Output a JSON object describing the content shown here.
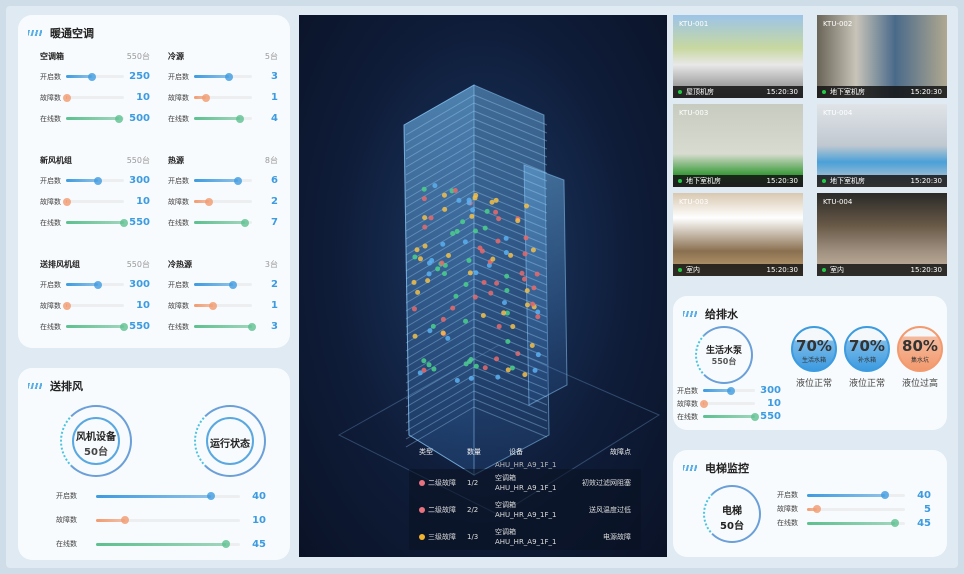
{
  "hvac": {
    "title": "暖通空调",
    "groups": [
      {
        "name": "空调箱",
        "total": 550,
        "unit": "台",
        "rows": [
          {
            "label": "开启数",
            "value": 250
          },
          {
            "label": "故障数",
            "value": 10
          },
          {
            "label": "在线数",
            "value": 500
          }
        ]
      },
      {
        "name": "冷源",
        "total": 5,
        "unit": "台",
        "rows": [
          {
            "label": "开启数",
            "value": 3
          },
          {
            "label": "故障数",
            "value": 1
          },
          {
            "label": "在线数",
            "value": 4
          }
        ]
      },
      {
        "name": "新风机组",
        "total": 550,
        "unit": "台",
        "rows": [
          {
            "label": "开启数",
            "value": 300
          },
          {
            "label": "故障数",
            "value": 10
          },
          {
            "label": "在线数",
            "value": 550
          }
        ]
      },
      {
        "name": "热源",
        "total": 8,
        "unit": "台",
        "rows": [
          {
            "label": "开启数",
            "value": 6
          },
          {
            "label": "故障数",
            "value": 2
          },
          {
            "label": "在线数",
            "value": 7
          }
        ]
      },
      {
        "name": "送排风机组",
        "total": 550,
        "unit": "台",
        "rows": [
          {
            "label": "开启数",
            "value": 300
          },
          {
            "label": "故障数",
            "value": 10
          },
          {
            "label": "在线数",
            "value": 550
          }
        ]
      },
      {
        "name": "冷热源",
        "total": 3,
        "unit": "台",
        "rows": [
          {
            "label": "开启数",
            "value": 2
          },
          {
            "label": "故障数",
            "value": 1
          },
          {
            "label": "在线数",
            "value": 3
          }
        ]
      }
    ]
  },
  "ventilation": {
    "title": "送排风",
    "device_label": "风机设备",
    "device_count": "50台",
    "status_label": "运行状态",
    "total": 50,
    "rows": [
      {
        "label": "开启数",
        "value": 40
      },
      {
        "label": "故障数",
        "value": 10
      },
      {
        "label": "在线数",
        "value": 45
      }
    ]
  },
  "faults": {
    "headers": [
      "类型",
      "数量",
      "设备",
      "故障点"
    ],
    "partial_row": "AHU_HR_A9_1F_1",
    "rows": [
      {
        "level": "二级故障",
        "color": "#e8737f",
        "count": "1/2",
        "device": "空调箱",
        "device_id": "AHU_HR_A9_1F_1",
        "point": "初效过滤网阻塞"
      },
      {
        "level": "二级故障",
        "color": "#e8737f",
        "count": "2/2",
        "device": "空调箱",
        "device_id": "AHU_HR_A9_1F_1",
        "point": "送风温度过低"
      },
      {
        "level": "三级故障",
        "color": "#f2b32e",
        "count": "1/3",
        "device": "空调箱",
        "device_id": "AHU_HR_A9_1F_1",
        "point": "电源故障"
      }
    ]
  },
  "cameras": [
    {
      "id": "KTU-001",
      "location": "屋顶机房",
      "time": "15:20:30"
    },
    {
      "id": "KTU-002",
      "location": "地下室机房",
      "time": "15:20:30"
    },
    {
      "id": "KTU-003",
      "location": "地下室机房",
      "time": "15:20:30"
    },
    {
      "id": "KTU-004",
      "location": "地下室机房",
      "time": "15:20:30"
    },
    {
      "id": "KTU-003",
      "location": "室内",
      "time": "15:20:30"
    },
    {
      "id": "KTU-004",
      "location": "室内",
      "time": "15:20:30"
    }
  ],
  "water": {
    "title": "给排水",
    "pump_label": "生活水泵",
    "pump_count": "550台",
    "total": 550,
    "rows": [
      {
        "label": "开启数",
        "value": 300
      },
      {
        "label": "故障数",
        "value": 10
      },
      {
        "label": "在线数",
        "value": 550
      }
    ],
    "tanks": [
      {
        "pct": "70%",
        "level": 0.7,
        "name": "生活水箱",
        "status": "液位正常",
        "color": "#3d9be0"
      },
      {
        "pct": "70%",
        "level": 0.7,
        "name": "补水箱",
        "status": "液位正常",
        "color": "#3d9be0"
      },
      {
        "pct": "80%",
        "level": 0.8,
        "name": "集水坑",
        "status": "液位过高",
        "color": "#f39a6e"
      }
    ]
  },
  "elevator": {
    "title": "电梯监控",
    "label": "电梯",
    "count": "50台",
    "total": 50,
    "rows": [
      {
        "label": "开启数",
        "value": 40
      },
      {
        "label": "故障数",
        "value": 5
      },
      {
        "label": "在线数",
        "value": 45
      }
    ]
  },
  "colors": {
    "open": "#3d9be0",
    "fault": "#f39a6e",
    "online": "#5cc08f",
    "value": "#3d9be0"
  }
}
